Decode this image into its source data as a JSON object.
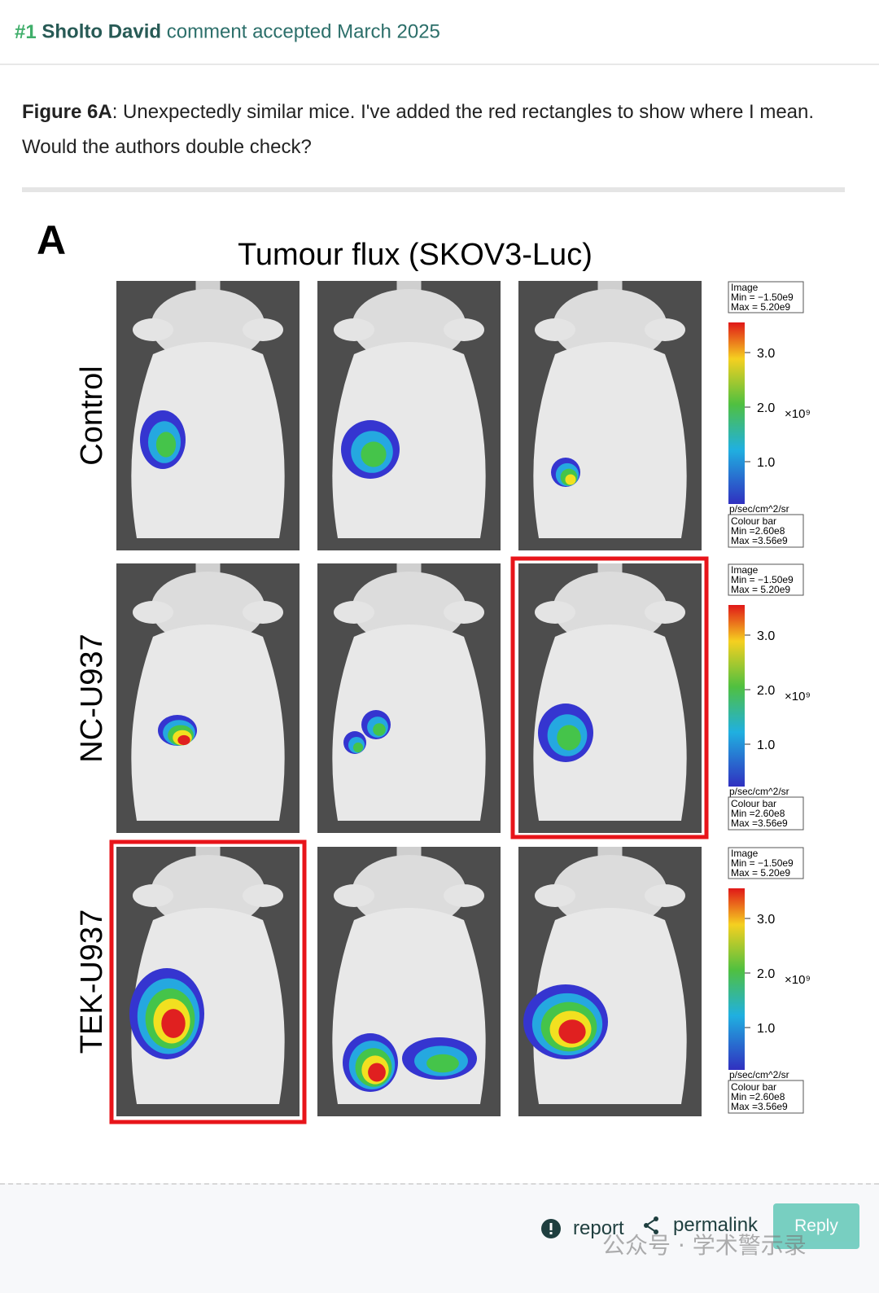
{
  "header": {
    "rank": "#1",
    "author": "Sholto David",
    "status": "comment accepted March 2025"
  },
  "comment": {
    "figure_ref": "Figure 6A",
    "text": ": Unexpectedly similar mice. I've added the red rectangles to show where I mean. Would the authors double check?"
  },
  "figure": {
    "panel": "A",
    "title": "Tumour flux (SKOV3-Luc)",
    "rows": [
      "Control",
      "NC-U937",
      "TEK-U937"
    ],
    "scales": [
      {
        "image": "Image",
        "image_min": "Min = −1.50e9",
        "image_max": "Max = 5.20e9",
        "ticks": [
          "3.0",
          "2.0",
          "1.0"
        ],
        "multiplier": "×10⁹",
        "unit": "p/sec/cm^2/sr",
        "bar": "Colour bar",
        "bar_min": "Min =2.60e8",
        "bar_max": "Max =3.56e9"
      },
      {
        "image": "Image",
        "image_min": "Min = −1.50e9",
        "image_max": "Max = 5.20e9",
        "ticks": [
          "3.0",
          "2.0",
          "1.0"
        ],
        "multiplier": "×10⁹",
        "unit": "p/sec/cm^2/sr",
        "bar": "Colour bar",
        "bar_min": "Min =2.60e8",
        "bar_max": "Max =3.56e9"
      },
      {
        "image": "Image",
        "image_min": "Min = −1.50e9",
        "image_max": "Max = 5.20e9",
        "ticks": [
          "3.0",
          "2.0",
          "1.0"
        ],
        "multiplier": "×10⁹",
        "unit": "p/sec/cm^2/sr",
        "bar": "Colour bar",
        "bar_min": "Min =2.60e8",
        "bar_max": "Max =3.56e9"
      }
    ]
  },
  "footer": {
    "report": "report",
    "permalink": "permalink",
    "reply": "Reply"
  },
  "watermark": "公众号 · 学术警示录"
}
